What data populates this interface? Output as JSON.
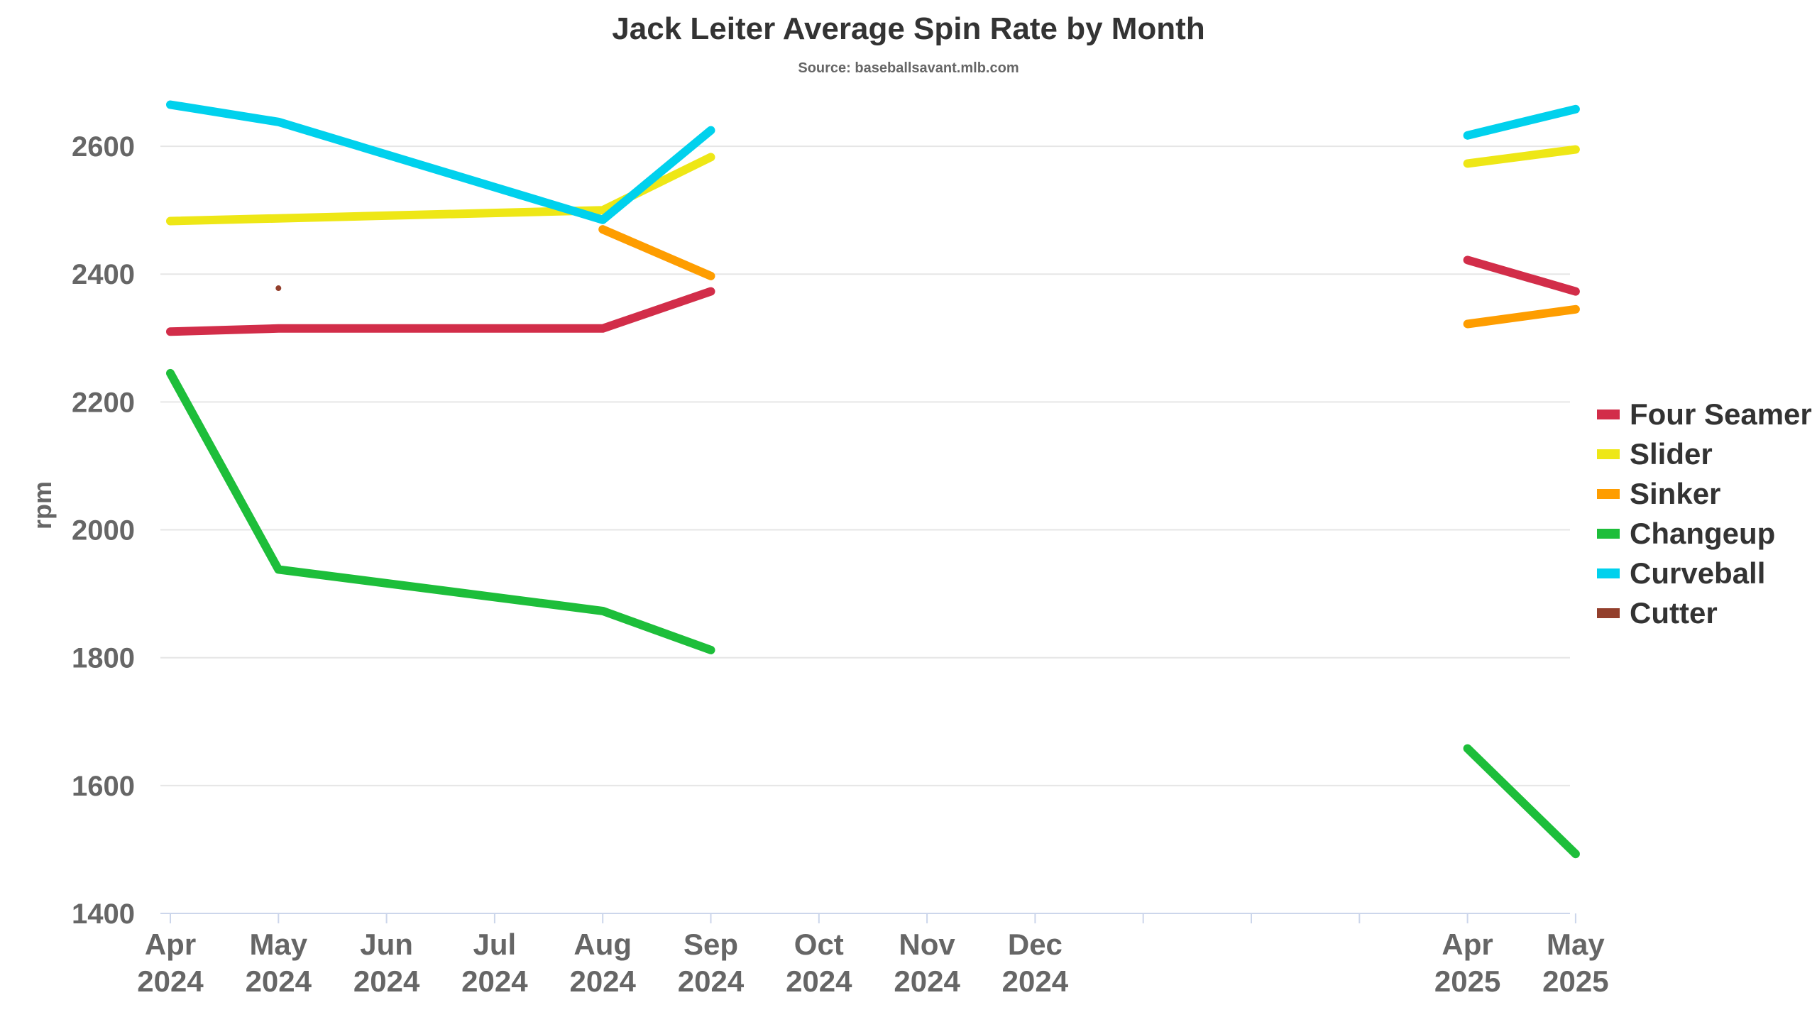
{
  "chart_data": {
    "type": "line",
    "title": "Jack Leiter Average Spin Rate by Month",
    "subtitle": "Source: baseballsavant.mlb.com",
    "ylabel": "rpm",
    "xlabel": "",
    "ylim": [
      1400,
      2700
    ],
    "yticks": [
      1400,
      1600,
      1800,
      2000,
      2200,
      2400,
      2600
    ],
    "grid": true,
    "legend_position": "right",
    "x_labeled": [
      {
        "m": 0,
        "line1": "Apr",
        "line2": "2024"
      },
      {
        "m": 1,
        "line1": "May",
        "line2": "2024"
      },
      {
        "m": 2,
        "line1": "Jun",
        "line2": "2024"
      },
      {
        "m": 3,
        "line1": "Jul",
        "line2": "2024"
      },
      {
        "m": 4,
        "line1": "Aug",
        "line2": "2024"
      },
      {
        "m": 5,
        "line1": "Sep",
        "line2": "2024"
      },
      {
        "m": 6,
        "line1": "Oct",
        "line2": "2024"
      },
      {
        "m": 7,
        "line1": "Nov",
        "line2": "2024"
      },
      {
        "m": 8,
        "line1": "Dec",
        "line2": "2024"
      },
      {
        "m": 12,
        "line1": "Apr",
        "line2": "2025"
      },
      {
        "m": 13,
        "line1": "May",
        "line2": "2025"
      }
    ],
    "x_unlabeled_ticks": [
      9,
      10,
      11
    ],
    "series": [
      {
        "name": "Four Seamer",
        "color": "#d22d49",
        "segments": [
          [
            [
              0,
              2310
            ],
            [
              1,
              2315
            ],
            [
              4,
              2315
            ],
            [
              5,
              2373
            ]
          ],
          [
            [
              12,
              2422
            ],
            [
              13,
              2373
            ]
          ]
        ]
      },
      {
        "name": "Slider",
        "color": "#eee716",
        "segments": [
          [
            [
              0,
              2483
            ],
            [
              4,
              2500
            ],
            [
              5,
              2583
            ]
          ],
          [
            [
              12,
              2573
            ],
            [
              13,
              2595
            ]
          ]
        ]
      },
      {
        "name": "Sinker",
        "color": "#fe9d00",
        "segments": [
          [
            [
              4,
              2470
            ],
            [
              5,
              2397
            ]
          ],
          [
            [
              12,
              2322
            ],
            [
              13,
              2345
            ]
          ]
        ]
      },
      {
        "name": "Changeup",
        "color": "#1dbe3a",
        "segments": [
          [
            [
              0,
              2245
            ],
            [
              1,
              1938
            ],
            [
              4,
              1873
            ],
            [
              5,
              1812
            ]
          ],
          [
            [
              12,
              1658
            ],
            [
              13,
              1493
            ]
          ]
        ]
      },
      {
        "name": "Curveball",
        "color": "#00d1ed",
        "segments": [
          [
            [
              0,
              2665
            ],
            [
              1,
              2638
            ],
            [
              4,
              2485
            ],
            [
              5,
              2625
            ]
          ],
          [
            [
              12,
              2617
            ],
            [
              13,
              2658
            ]
          ]
        ]
      },
      {
        "name": "Cutter",
        "color": "#933f2c",
        "segments": [
          [
            [
              1,
              2378
            ]
          ]
        ]
      }
    ]
  }
}
